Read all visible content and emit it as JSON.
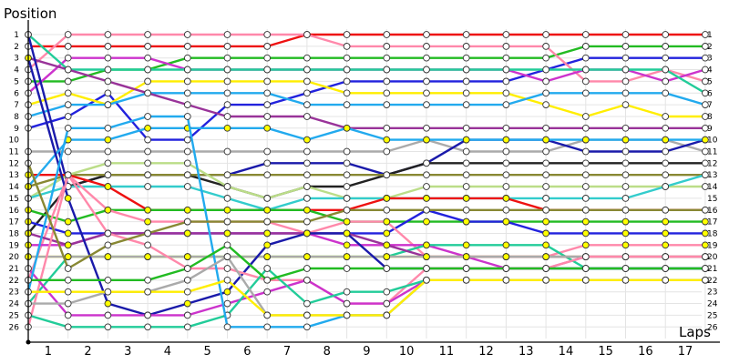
{
  "chart_data": {
    "type": "line",
    "ylabel": "Position",
    "xlabel": "Laps",
    "x": [
      0,
      1,
      2,
      3,
      4,
      5,
      6,
      7,
      8,
      9,
      10,
      11,
      12,
      13,
      14,
      15,
      16,
      17
    ],
    "x_tick_labels": [
      "1",
      "2",
      "3",
      "4",
      "5",
      "6",
      "7",
      "8",
      "9",
      "10",
      "11",
      "12",
      "13",
      "14",
      "15",
      "16",
      "17"
    ],
    "y_tick_labels": [
      "1",
      "2",
      "3",
      "4",
      "5",
      "6",
      "7",
      "8",
      "9",
      "10",
      "11",
      "12",
      "13",
      "14",
      "15",
      "16",
      "17",
      "18",
      "19",
      "20",
      "21",
      "22",
      "23",
      "24",
      "25",
      "26"
    ],
    "ylim": [
      26,
      1
    ],
    "xlim": [
      0,
      17.5
    ],
    "grid": true,
    "series": [
      {
        "color": "#ee1111",
        "fill": "#ffffff",
        "values": [
          2,
          2,
          2,
          2,
          2,
          2,
          2,
          1,
          1,
          1,
          1,
          1,
          1,
          1,
          1,
          1,
          1,
          1
        ]
      },
      {
        "color": "#22bb22",
        "fill": "#ffffff",
        "values": [
          5,
          5,
          4,
          4,
          3,
          3,
          3,
          3,
          3,
          3,
          3,
          3,
          3,
          3,
          2,
          2,
          2,
          2
        ]
      },
      {
        "color": "#2222dd",
        "fill": "#ffffff",
        "values": [
          9,
          8,
          6,
          10,
          10,
          7,
          7,
          6,
          5,
          5,
          5,
          5,
          5,
          4,
          3,
          3,
          3,
          3
        ]
      },
      {
        "color": "#ff88aa",
        "fill": "#ffffff",
        "values": [
          4,
          1,
          1,
          1,
          1,
          1,
          1,
          1,
          2,
          2,
          2,
          2,
          2,
          2,
          5,
          5,
          4,
          5
        ]
      },
      {
        "color": "#cc33cc",
        "fill": "#ffffff",
        "values": [
          6,
          3,
          3,
          3,
          4,
          4,
          4,
          4,
          4,
          4,
          4,
          4,
          4,
          5,
          4,
          4,
          5,
          4
        ]
      },
      {
        "color": "#22cc99",
        "fill": "#ffffff",
        "values": [
          1,
          4,
          4,
          4,
          4,
          4,
          4,
          4,
          4,
          4,
          4,
          4,
          4,
          4,
          4,
          4,
          4,
          6
        ]
      },
      {
        "color": "#ffee00",
        "fill": "#ffffff",
        "values": [
          7,
          6,
          7,
          5,
          5,
          5,
          5,
          5,
          6,
          6,
          6,
          6,
          6,
          7,
          8,
          7,
          8,
          8
        ]
      },
      {
        "color": "#22aaee",
        "fill": "#ffffff",
        "values": [
          8,
          7,
          7,
          6,
          6,
          6,
          6,
          7,
          7,
          7,
          7,
          7,
          7,
          6,
          6,
          6,
          6,
          7
        ]
      },
      {
        "color": "#993399",
        "fill": "#ffffff",
        "values": [
          3,
          4,
          5,
          6,
          7,
          8,
          8,
          8,
          9,
          9,
          9,
          9,
          9,
          9,
          9,
          9,
          9,
          9
        ]
      },
      {
        "color": "#aaaaaa",
        "fill": "#ffffff",
        "values": [
          11,
          11,
          11,
          11,
          11,
          11,
          11,
          11,
          11,
          11,
          10,
          11,
          11,
          11,
          10,
          10,
          10,
          11
        ]
      },
      {
        "color": "#1a1aaa",
        "fill": "#ffffff",
        "values": [
          1,
          14,
          13,
          13,
          13,
          13,
          12,
          12,
          12,
          13,
          12,
          10,
          10,
          10,
          11,
          11,
          11,
          10
        ]
      },
      {
        "color": "#222222",
        "fill": "#ffffff",
        "values": [
          18,
          14,
          13,
          13,
          13,
          14,
          15,
          14,
          14,
          13,
          12,
          12,
          12,
          12,
          12,
          12,
          12,
          12
        ]
      },
      {
        "color": "#888833",
        "fill": "#ffffff",
        "values": [
          14,
          13,
          13,
          13,
          13,
          13,
          13,
          13,
          13,
          13,
          13,
          13,
          13,
          13,
          13,
          13,
          13,
          13
        ]
      },
      {
        "color": "#bbdd88",
        "fill": "#ffffff",
        "values": [
          15,
          13,
          12,
          12,
          12,
          14,
          15,
          14,
          15,
          15,
          14,
          14,
          14,
          14,
          14,
          14,
          14,
          14
        ]
      },
      {
        "color": "#33cccc",
        "fill": "#ffffff",
        "values": [
          15,
          14,
          14,
          14,
          14,
          15,
          16,
          15,
          15,
          15,
          15,
          15,
          15,
          15,
          15,
          15,
          14,
          13
        ]
      },
      {
        "color": "#ee1111",
        "fill": "#ffff00",
        "values": [
          13,
          13,
          14,
          16,
          16,
          16,
          16,
          16,
          16,
          15,
          15,
          15,
          15,
          16,
          16,
          16,
          16,
          16
        ]
      },
      {
        "color": "#22bb22",
        "fill": "#ffff00",
        "values": [
          16,
          17,
          16,
          16,
          16,
          16,
          16,
          16,
          17,
          17,
          17,
          17,
          17,
          17,
          17,
          17,
          17,
          17
        ]
      },
      {
        "color": "#2222dd",
        "fill": "#ffff00",
        "values": [
          17,
          18,
          18,
          18,
          18,
          18,
          18,
          18,
          18,
          18,
          16,
          17,
          17,
          18,
          18,
          18,
          18,
          18
        ]
      },
      {
        "color": "#ff88aa",
        "fill": "#ffff00",
        "values": [
          22,
          13,
          16,
          17,
          17,
          17,
          17,
          18,
          17,
          17,
          20,
          20,
          20,
          20,
          19,
          19,
          19,
          19
        ]
      },
      {
        "color": "#cc33cc",
        "fill": "#ffff00",
        "values": [
          19,
          19,
          18,
          18,
          18,
          18,
          18,
          18,
          19,
          19,
          19,
          20,
          21,
          21,
          20,
          20,
          20,
          20
        ]
      },
      {
        "color": "#22cc99",
        "fill": "#ffff00",
        "values": [
          24,
          20,
          20,
          20,
          20,
          20,
          20,
          20,
          20,
          20,
          19,
          19,
          19,
          19,
          21,
          21,
          21,
          21
        ]
      },
      {
        "color": "#ffee00",
        "fill": "#ffff00",
        "values": [
          20,
          20,
          20,
          20,
          20,
          20,
          20,
          20,
          20,
          20,
          20,
          20,
          20,
          20,
          20,
          20,
          20,
          20
        ]
      },
      {
        "color": "#22aaee",
        "fill": "#ffff00",
        "values": [
          14,
          10,
          10,
          9,
          9,
          9,
          9,
          10,
          9,
          10,
          10,
          10,
          10,
          10,
          10,
          10,
          10,
          10
        ]
      },
      {
        "color": "#993399",
        "fill": "#ffff00",
        "values": [
          18,
          19,
          18,
          18,
          18,
          18,
          18,
          18,
          18,
          19,
          20,
          20,
          20,
          20,
          20,
          20,
          20,
          20
        ]
      },
      {
        "color": "#aaaaaa",
        "fill": "#ffff00",
        "values": [
          20,
          20,
          20,
          20,
          20,
          20,
          20,
          20,
          20,
          20,
          20,
          20,
          20,
          20,
          20,
          20,
          20,
          20
        ]
      },
      {
        "color": "#1a1aaa",
        "fill": "#ffff00",
        "values": [
          3,
          15,
          24,
          25,
          24,
          23,
          19,
          18,
          18,
          21,
          21,
          21,
          21,
          21,
          21,
          21,
          21,
          21
        ]
      },
      {
        "color": "#ff88aa",
        "fill": "#ffffff",
        "values": [
          26,
          13,
          18,
          19,
          21,
          21,
          22,
          22,
          24,
          24,
          21,
          21,
          21,
          21,
          20,
          20,
          20,
          20
        ]
      },
      {
        "color": "#cc33cc",
        "fill": "#ffffff",
        "values": [
          21,
          25,
          25,
          25,
          25,
          24,
          23,
          22,
          24,
          24,
          22,
          22,
          22,
          22,
          22,
          22,
          22,
          22
        ]
      },
      {
        "color": "#22cc99",
        "fill": "#ffffff",
        "values": [
          25,
          26,
          26,
          26,
          26,
          25,
          21,
          24,
          23,
          23,
          22,
          22,
          22,
          22,
          22,
          22,
          22,
          22
        ]
      },
      {
        "color": "#22aaee",
        "fill": "#ffffff",
        "values": [
          23,
          9,
          9,
          8,
          8,
          26,
          26,
          26,
          25,
          25,
          22,
          22,
          22,
          22,
          22,
          22,
          22,
          22
        ]
      },
      {
        "color": "#aaaaaa",
        "fill": "#ffffff",
        "values": [
          24,
          24,
          23,
          23,
          22,
          20,
          25,
          25,
          25,
          25,
          22,
          22,
          22,
          22,
          22,
          22,
          22,
          22
        ]
      },
      {
        "color": "#22bb22",
        "fill": "#ffffff",
        "values": [
          22,
          22,
          22,
          22,
          21,
          19,
          22,
          21,
          21,
          21,
          21,
          21,
          21,
          21,
          21,
          21,
          21,
          21
        ]
      },
      {
        "color": "#ffee00",
        "fill": "#ffffff",
        "values": [
          23,
          23,
          23,
          23,
          23,
          22,
          25,
          25,
          25,
          25,
          22,
          22,
          22,
          22,
          22,
          22,
          22,
          22
        ]
      },
      {
        "color": "#888833",
        "fill": "#ffffff",
        "values": [
          12,
          21,
          19,
          18,
          17,
          17,
          17,
          17,
          16,
          16,
          16,
          16,
          16,
          16,
          16,
          16,
          16,
          16
        ]
      }
    ]
  }
}
